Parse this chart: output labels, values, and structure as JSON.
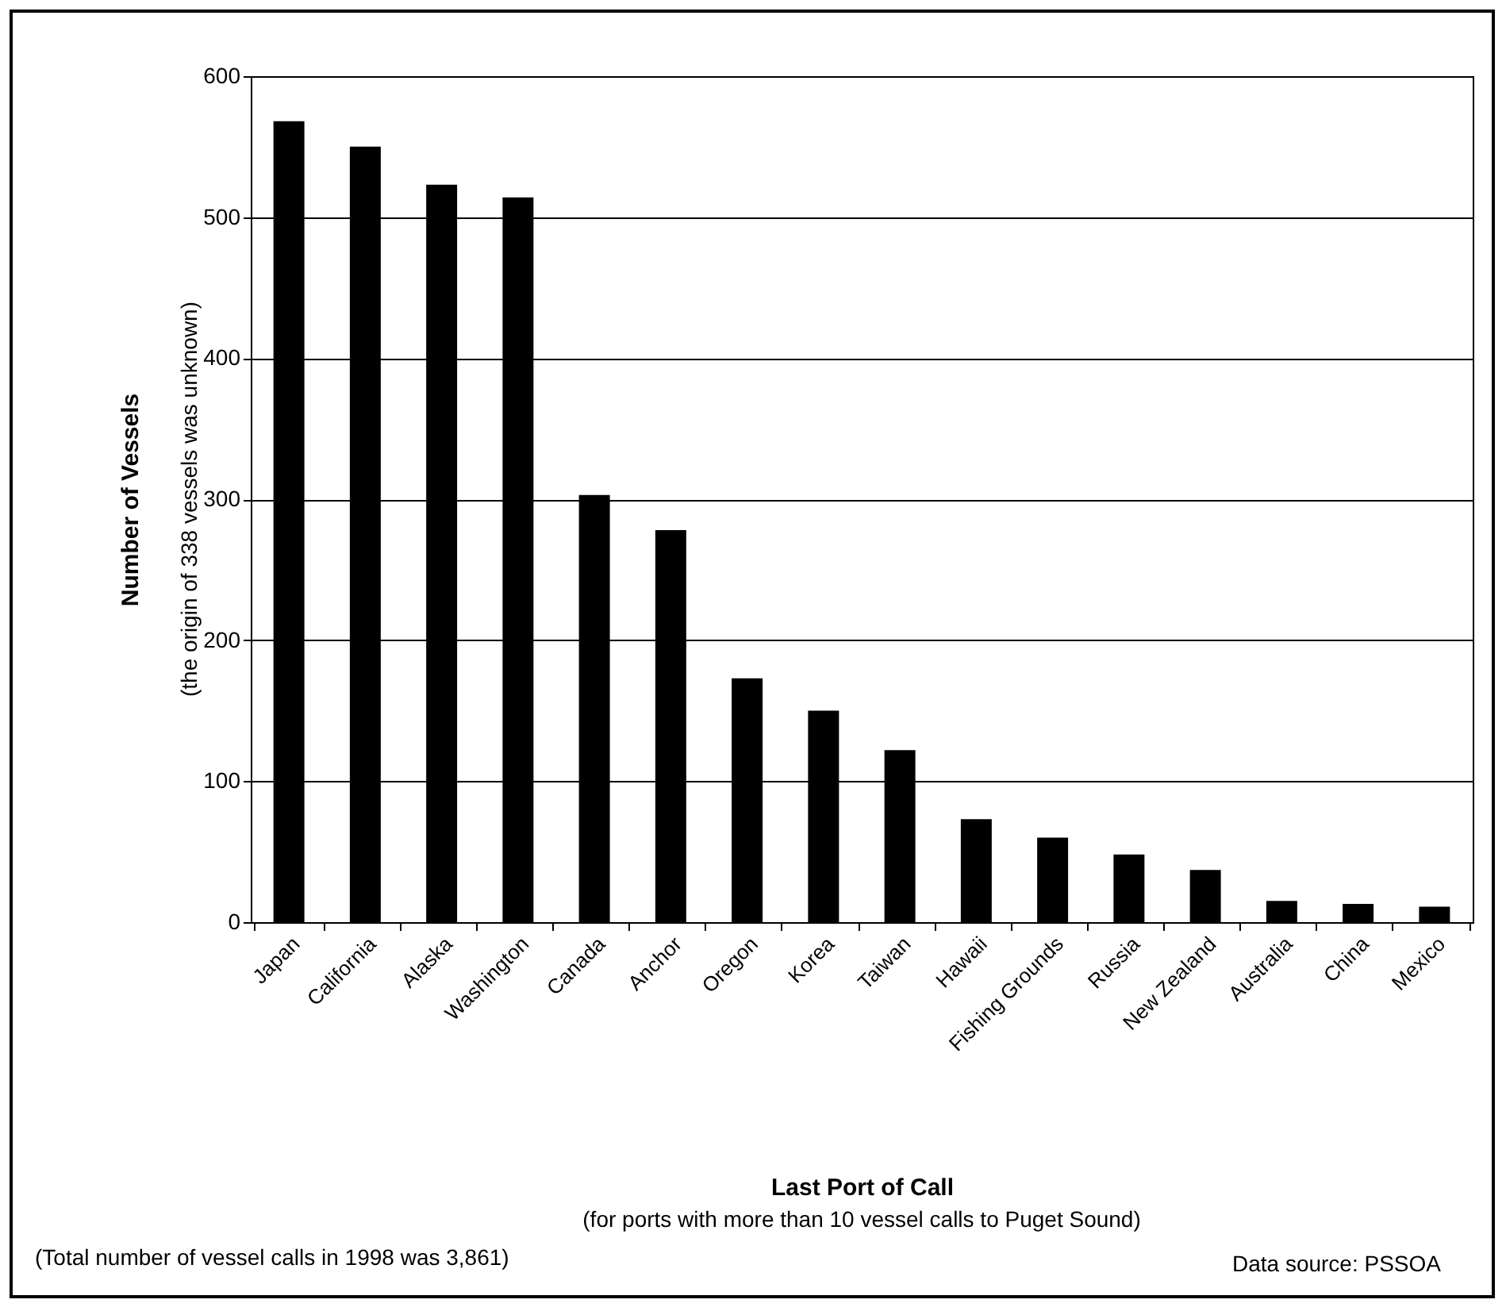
{
  "chart_data": {
    "type": "bar",
    "xlabel": "Last Port of Call",
    "ylabel": "Number of Vessels",
    "categories": [
      "Japan",
      "California",
      "Alaska",
      "Washington",
      "Canada",
      "Anchor",
      "Oregon",
      "Korea",
      "Taiwan",
      "Hawaii",
      "Fishing Grounds",
      "Russia",
      "New Zealand",
      "Australia",
      "China",
      "Mexico"
    ],
    "values": [
      568,
      550,
      523,
      514,
      303,
      278,
      173,
      150,
      122,
      73,
      60,
      48,
      37,
      15,
      13,
      11
    ],
    "color": "#000000",
    "ylim": [
      0,
      600
    ],
    "yticks": [
      0,
      100,
      200,
      300,
      400,
      500,
      600
    ],
    "grid": "y",
    "annotations": [
      "(for ports with more than 10 vessel calls to Puget Sound)",
      "(the origin of 338 vessels was unknown)",
      "(Total number of vessel calls in 1998 was 3,861)",
      "Data source: PSSOA"
    ]
  }
}
